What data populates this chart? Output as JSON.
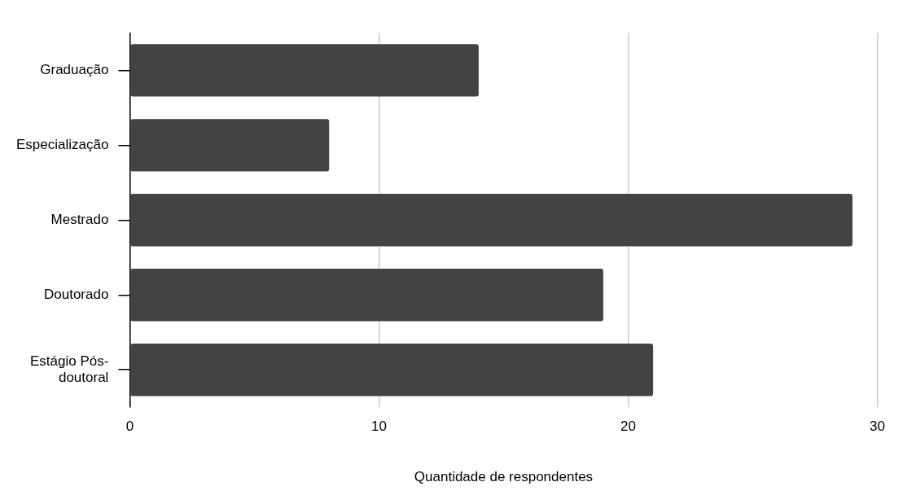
{
  "chart_data": {
    "type": "bar",
    "orientation": "horizontal",
    "xlabel": "Quantidade de respondentes",
    "categories": [
      "Graduação",
      "Especialização",
      "Mestrado",
      "Doutorado",
      "Estágio Pós-doutoral"
    ],
    "values": [
      14,
      8,
      29,
      19,
      21
    ],
    "color": "#434343",
    "xlim": [
      0,
      30
    ],
    "xticks": [
      0,
      10,
      20,
      30
    ],
    "grid": "x",
    "legend": false
  }
}
